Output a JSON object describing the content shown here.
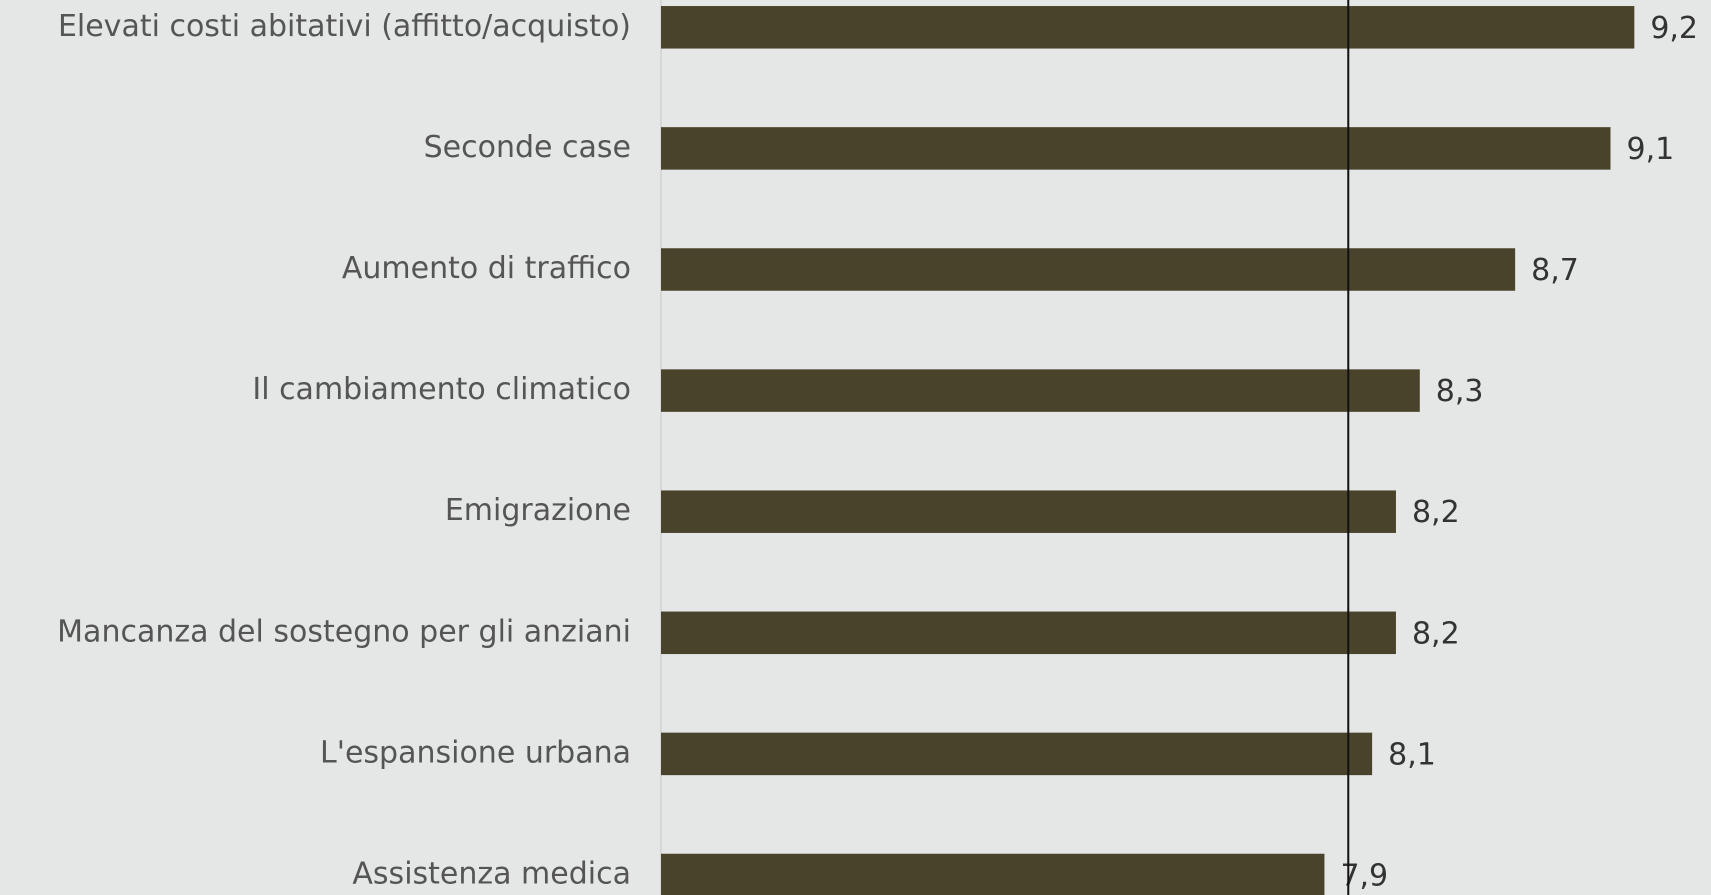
{
  "chart_data": {
    "type": "hbar",
    "categories": [
      "Elevati costi abitativi (affitto/acquisto)",
      "Seconde case",
      "Aumento di traffico",
      "Il cambiamento climatico",
      "Emigrazione",
      "Mancanza del sostegno per gli anziani",
      "L'espansione urbana",
      "Assistenza medica"
    ],
    "values": [
      9.2,
      9.1,
      8.7,
      8.3,
      8.2,
      8.2,
      8.1,
      7.9
    ],
    "value_labels": [
      "9,2",
      "9,1",
      "8,7",
      "8,3",
      "8,2",
      "8,2",
      "8,1",
      "7,9"
    ],
    "color": "#4a432b",
    "xlim": [
      5.1,
      9.4
    ],
    "reference_line": 8.0
  }
}
